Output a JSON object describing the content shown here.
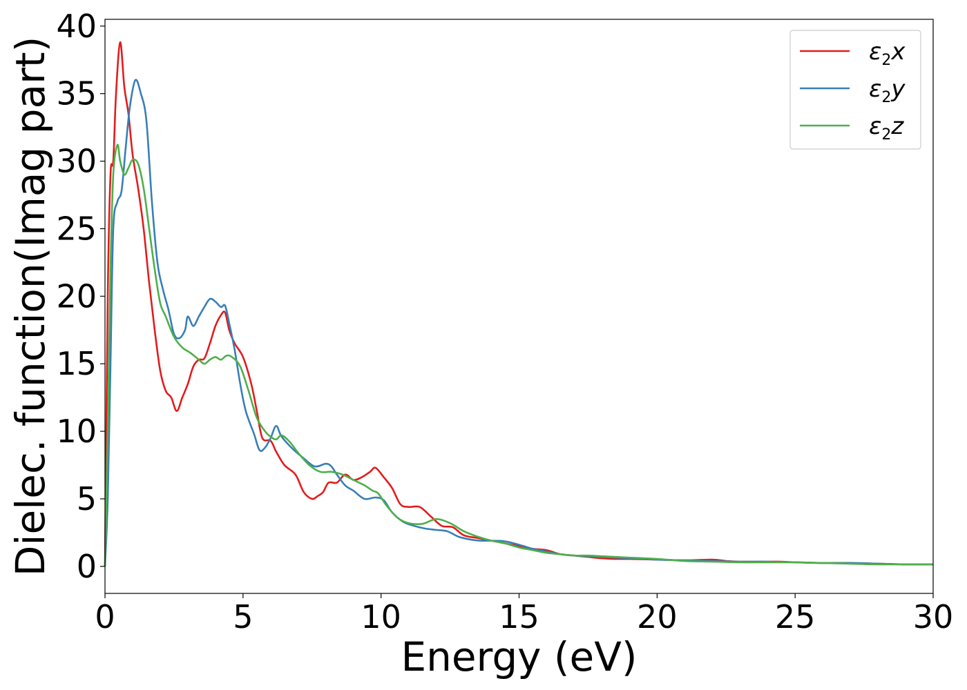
{
  "chart_data": {
    "type": "line",
    "xlabel": "Energy (eV)",
    "ylabel": "Dielec. function(Imag part)",
    "xlim": [
      0,
      30
    ],
    "ylim": [
      -2,
      40.5
    ],
    "x_ticks": [
      0,
      5,
      10,
      15,
      20,
      25,
      30
    ],
    "y_ticks": [
      0,
      5,
      10,
      15,
      20,
      25,
      30,
      35,
      40
    ],
    "grid": false,
    "legend_position": "top-right",
    "series": [
      {
        "name": "ε₂x",
        "legend_base": "ε",
        "legend_sub": "2",
        "legend_suffix": "x",
        "color": "#e41a1c",
        "points": [
          [
            0,
            0
          ],
          [
            0.1,
            20
          ],
          [
            0.2,
            29
          ],
          [
            0.3,
            30
          ],
          [
            0.4,
            35
          ],
          [
            0.55,
            38.8
          ],
          [
            0.7,
            35.5
          ],
          [
            0.85,
            33.5
          ],
          [
            1.0,
            30.5
          ],
          [
            1.2,
            28
          ],
          [
            1.4,
            25
          ],
          [
            1.6,
            21
          ],
          [
            1.8,
            17.5
          ],
          [
            2.0,
            14.5
          ],
          [
            2.2,
            13
          ],
          [
            2.4,
            12.5
          ],
          [
            2.6,
            11.5
          ],
          [
            2.8,
            12.5
          ],
          [
            3.0,
            13.5
          ],
          [
            3.2,
            14.8
          ],
          [
            3.4,
            15.3
          ],
          [
            3.6,
            15.4
          ],
          [
            3.8,
            16.5
          ],
          [
            4.0,
            17.8
          ],
          [
            4.2,
            18.6
          ],
          [
            4.35,
            18.8
          ],
          [
            4.5,
            17.5
          ],
          [
            4.7,
            16.5
          ],
          [
            5.0,
            15.5
          ],
          [
            5.3,
            13.5
          ],
          [
            5.5,
            11.5
          ],
          [
            5.7,
            9.5
          ],
          [
            6.0,
            9.3
          ],
          [
            6.2,
            8.5
          ],
          [
            6.5,
            7.5
          ],
          [
            6.9,
            6.8
          ],
          [
            7.2,
            5.5
          ],
          [
            7.5,
            5.0
          ],
          [
            7.7,
            5.2
          ],
          [
            7.9,
            5.5
          ],
          [
            8.1,
            6.2
          ],
          [
            8.4,
            6.2
          ],
          [
            8.7,
            6.8
          ],
          [
            9.0,
            6.4
          ],
          [
            9.3,
            6.6
          ],
          [
            9.6,
            7.0
          ],
          [
            9.8,
            7.3
          ],
          [
            10.1,
            6.6
          ],
          [
            10.4,
            5.8
          ],
          [
            10.7,
            4.6
          ],
          [
            11.0,
            4.4
          ],
          [
            11.4,
            4.4
          ],
          [
            11.8,
            3.7
          ],
          [
            12.2,
            3.0
          ],
          [
            12.6,
            2.9
          ],
          [
            13.0,
            2.3
          ],
          [
            13.5,
            2.1
          ],
          [
            14.0,
            1.9
          ],
          [
            14.5,
            1.7
          ],
          [
            15.0,
            1.5
          ],
          [
            15.5,
            1.3
          ],
          [
            16.0,
            1.2
          ],
          [
            16.5,
            0.9
          ],
          [
            17.0,
            0.8
          ],
          [
            17.5,
            0.7
          ],
          [
            18.0,
            0.6
          ],
          [
            18.5,
            0.55
          ],
          [
            19.0,
            0.55
          ],
          [
            20.0,
            0.5
          ],
          [
            21.0,
            0.45
          ],
          [
            22.0,
            0.5
          ],
          [
            22.5,
            0.4
          ],
          [
            23.0,
            0.35
          ],
          [
            24.0,
            0.35
          ],
          [
            24.5,
            0.35
          ],
          [
            25.0,
            0.3
          ],
          [
            26.0,
            0.25
          ],
          [
            27.0,
            0.25
          ],
          [
            28.0,
            0.2
          ],
          [
            29.0,
            0.15
          ],
          [
            30.0,
            0.15
          ]
        ]
      },
      {
        "name": "ε₂y",
        "legend_base": "ε",
        "legend_sub": "2",
        "legend_suffix": "y",
        "color": "#377eb8",
        "points": [
          [
            0,
            0
          ],
          [
            0.1,
            5
          ],
          [
            0.2,
            15
          ],
          [
            0.3,
            25
          ],
          [
            0.45,
            27
          ],
          [
            0.6,
            27.8
          ],
          [
            0.75,
            31
          ],
          [
            0.9,
            34
          ],
          [
            1.1,
            36
          ],
          [
            1.3,
            35
          ],
          [
            1.5,
            33
          ],
          [
            1.7,
            27
          ],
          [
            1.9,
            22.5
          ],
          [
            2.1,
            20.5
          ],
          [
            2.3,
            19
          ],
          [
            2.5,
            17.2
          ],
          [
            2.7,
            16.9
          ],
          [
            2.9,
            17.5
          ],
          [
            3.0,
            18.5
          ],
          [
            3.2,
            17.8
          ],
          [
            3.4,
            18.5
          ],
          [
            3.6,
            19.2
          ],
          [
            3.8,
            19.8
          ],
          [
            4.0,
            19.6
          ],
          [
            4.2,
            19.2
          ],
          [
            4.35,
            19.3
          ],
          [
            4.5,
            18.0
          ],
          [
            4.7,
            16.0
          ],
          [
            4.9,
            13.5
          ],
          [
            5.1,
            11.5
          ],
          [
            5.4,
            9.8
          ],
          [
            5.6,
            8.6
          ],
          [
            5.8,
            8.8
          ],
          [
            6.0,
            9.5
          ],
          [
            6.2,
            10.4
          ],
          [
            6.4,
            9.6
          ],
          [
            6.8,
            8.7
          ],
          [
            7.2,
            8.0
          ],
          [
            7.6,
            7.4
          ],
          [
            8.0,
            7.6
          ],
          [
            8.2,
            7.4
          ],
          [
            8.4,
            6.8
          ],
          [
            8.7,
            6.0
          ],
          [
            9.0,
            5.6
          ],
          [
            9.4,
            5.0
          ],
          [
            9.8,
            5.1
          ],
          [
            10.1,
            4.9
          ],
          [
            10.4,
            4.0
          ],
          [
            10.8,
            3.3
          ],
          [
            11.2,
            3.0
          ],
          [
            11.6,
            2.8
          ],
          [
            12.0,
            2.7
          ],
          [
            12.4,
            2.6
          ],
          [
            12.8,
            2.2
          ],
          [
            13.2,
            2.0
          ],
          [
            13.6,
            1.9
          ],
          [
            14.0,
            1.9
          ],
          [
            14.5,
            1.85
          ],
          [
            15.0,
            1.6
          ],
          [
            15.5,
            1.3
          ],
          [
            16.0,
            1.1
          ],
          [
            16.5,
            0.9
          ],
          [
            17.0,
            0.8
          ],
          [
            17.5,
            0.75
          ],
          [
            18.0,
            0.7
          ],
          [
            19.0,
            0.6
          ],
          [
            20.0,
            0.5
          ],
          [
            21.0,
            0.45
          ],
          [
            22.0,
            0.4
          ],
          [
            23.0,
            0.35
          ],
          [
            24.0,
            0.35
          ],
          [
            25.0,
            0.3
          ],
          [
            26.0,
            0.25
          ],
          [
            27.0,
            0.25
          ],
          [
            28.0,
            0.2
          ],
          [
            29.0,
            0.15
          ],
          [
            30.0,
            0.15
          ]
        ]
      },
      {
        "name": "ε₂z",
        "legend_base": "ε",
        "legend_sub": "2",
        "legend_suffix": "z",
        "color": "#4daf4a",
        "points": [
          [
            0,
            0
          ],
          [
            0.1,
            10
          ],
          [
            0.2,
            22
          ],
          [
            0.3,
            29
          ],
          [
            0.45,
            31.2
          ],
          [
            0.55,
            30
          ],
          [
            0.7,
            29
          ],
          [
            0.85,
            29.5
          ],
          [
            1.0,
            30.1
          ],
          [
            1.2,
            29.8
          ],
          [
            1.4,
            28
          ],
          [
            1.6,
            25
          ],
          [
            1.8,
            22
          ],
          [
            2.0,
            19.5
          ],
          [
            2.2,
            18.5
          ],
          [
            2.5,
            17
          ],
          [
            2.8,
            16.2
          ],
          [
            3.1,
            15.8
          ],
          [
            3.4,
            15.3
          ],
          [
            3.6,
            15.0
          ],
          [
            3.8,
            15.3
          ],
          [
            4.0,
            15.5
          ],
          [
            4.2,
            15.3
          ],
          [
            4.4,
            15.6
          ],
          [
            4.6,
            15.5
          ],
          [
            4.9,
            14.8
          ],
          [
            5.2,
            13.0
          ],
          [
            5.5,
            11.0
          ],
          [
            5.8,
            10.0
          ],
          [
            6.0,
            9.6
          ],
          [
            6.2,
            9.4
          ],
          [
            6.4,
            9.7
          ],
          [
            6.7,
            9.2
          ],
          [
            7.0,
            8.4
          ],
          [
            7.4,
            7.5
          ],
          [
            7.8,
            7.0
          ],
          [
            8.2,
            7.0
          ],
          [
            8.6,
            6.8
          ],
          [
            9.0,
            6.4
          ],
          [
            9.4,
            6.0
          ],
          [
            9.7,
            5.6
          ],
          [
            9.9,
            5.4
          ],
          [
            10.2,
            4.5
          ],
          [
            10.6,
            3.6
          ],
          [
            11.0,
            3.2
          ],
          [
            11.5,
            3.15
          ],
          [
            12.0,
            3.5
          ],
          [
            12.5,
            3.2
          ],
          [
            13.0,
            2.6
          ],
          [
            13.5,
            2.2
          ],
          [
            14.0,
            1.9
          ],
          [
            14.5,
            1.7
          ],
          [
            15.0,
            1.4
          ],
          [
            15.5,
            1.2
          ],
          [
            16.0,
            1.0
          ],
          [
            16.5,
            0.9
          ],
          [
            17.0,
            0.8
          ],
          [
            17.5,
            0.8
          ],
          [
            18.0,
            0.75
          ],
          [
            19.0,
            0.65
          ],
          [
            20.0,
            0.55
          ],
          [
            21.0,
            0.4
          ],
          [
            22.0,
            0.35
          ],
          [
            23.0,
            0.3
          ],
          [
            24.0,
            0.3
          ],
          [
            25.0,
            0.3
          ],
          [
            26.0,
            0.25
          ],
          [
            27.0,
            0.2
          ],
          [
            28.0,
            0.15
          ],
          [
            29.0,
            0.15
          ],
          [
            30.0,
            0.15
          ]
        ]
      }
    ]
  }
}
